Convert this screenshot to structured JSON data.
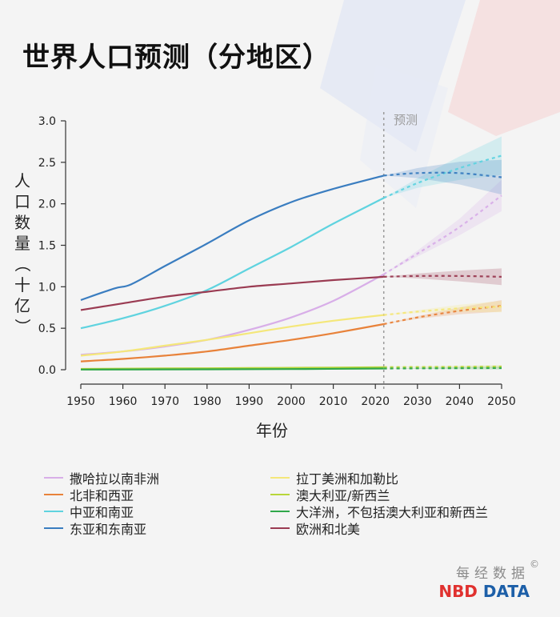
{
  "title": "世界人口预测（分地区）",
  "projection_label": "预测",
  "brand": {
    "cn": "每经数据",
    "en_left": "NBD",
    "en_right": "DATA",
    "copyright": "©"
  },
  "chart_data": {
    "type": "line",
    "title": "世界人口预测（分地区）",
    "xlabel": "年份",
    "ylabel": "人口数量（十亿）",
    "xlim": [
      1950,
      2050
    ],
    "ylim": [
      0,
      3.0
    ],
    "x_ticks": [
      1950,
      1960,
      1970,
      1980,
      1990,
      2000,
      2010,
      2020,
      2030,
      2040,
      2050
    ],
    "y_ticks": [
      "0.0",
      "0.5",
      "1.0",
      "1.5",
      "2.0",
      "2.5",
      "3.0"
    ],
    "projection_start": 2022,
    "series": [
      {
        "name": "撒哈拉以南非洲",
        "color": "#d8aee8",
        "historical": [
          [
            1950,
            0.18
          ],
          [
            1960,
            0.22
          ],
          [
            1970,
            0.28
          ],
          [
            1980,
            0.36
          ],
          [
            1990,
            0.48
          ],
          [
            2000,
            0.63
          ],
          [
            2010,
            0.83
          ],
          [
            2022,
            1.15
          ]
        ],
        "projected": [
          [
            2022,
            1.15
          ],
          [
            2030,
            1.4
          ],
          [
            2040,
            1.72
          ],
          [
            2050,
            2.1
          ]
        ]
      },
      {
        "name": "北非和西亚",
        "color": "#e8823a",
        "historical": [
          [
            1950,
            0.1
          ],
          [
            1960,
            0.13
          ],
          [
            1970,
            0.17
          ],
          [
            1980,
            0.22
          ],
          [
            1990,
            0.29
          ],
          [
            2000,
            0.36
          ],
          [
            2010,
            0.44
          ],
          [
            2022,
            0.55
          ]
        ],
        "projected": [
          [
            2022,
            0.55
          ],
          [
            2030,
            0.63
          ],
          [
            2040,
            0.71
          ],
          [
            2050,
            0.77
          ]
        ]
      },
      {
        "name": "中亚和南亚",
        "color": "#5fd3df",
        "historical": [
          [
            1950,
            0.5
          ],
          [
            1960,
            0.62
          ],
          [
            1970,
            0.77
          ],
          [
            1980,
            0.96
          ],
          [
            1990,
            1.22
          ],
          [
            2000,
            1.48
          ],
          [
            2010,
            1.76
          ],
          [
            2022,
            2.07
          ]
        ],
        "projected": [
          [
            2022,
            2.07
          ],
          [
            2030,
            2.25
          ],
          [
            2040,
            2.43
          ],
          [
            2050,
            2.58
          ]
        ]
      },
      {
        "name": "东亚和东南亚",
        "color": "#3a7dc0",
        "historical": [
          [
            1950,
            0.84
          ],
          [
            1958,
            0.98
          ],
          [
            1962,
            1.03
          ],
          [
            1970,
            1.25
          ],
          [
            1980,
            1.52
          ],
          [
            1990,
            1.8
          ],
          [
            2000,
            2.02
          ],
          [
            2010,
            2.18
          ],
          [
            2022,
            2.34
          ]
        ],
        "projected": [
          [
            2022,
            2.34
          ],
          [
            2030,
            2.37
          ],
          [
            2040,
            2.37
          ],
          [
            2050,
            2.32
          ]
        ]
      },
      {
        "name": "拉丁美洲和加勒比",
        "color": "#f4e77a",
        "historical": [
          [
            1950,
            0.17
          ],
          [
            1960,
            0.22
          ],
          [
            1970,
            0.29
          ],
          [
            1980,
            0.36
          ],
          [
            1990,
            0.44
          ],
          [
            2000,
            0.52
          ],
          [
            2010,
            0.59
          ],
          [
            2022,
            0.66
          ]
        ],
        "projected": [
          [
            2022,
            0.66
          ],
          [
            2030,
            0.7
          ],
          [
            2040,
            0.74
          ],
          [
            2050,
            0.76
          ]
        ]
      },
      {
        "name": "澳大利亚/新西兰",
        "color": "#b8d63a",
        "historical": [
          [
            1950,
            0.01
          ],
          [
            1970,
            0.015
          ],
          [
            1990,
            0.02
          ],
          [
            2010,
            0.026
          ],
          [
            2022,
            0.031
          ]
        ],
        "projected": [
          [
            2022,
            0.031
          ],
          [
            2050,
            0.038
          ]
        ]
      },
      {
        "name": "大洋洲，不包括澳大利亚和新西兰",
        "color": "#2fa84a",
        "historical": [
          [
            1950,
            0.002
          ],
          [
            1980,
            0.005
          ],
          [
            2000,
            0.008
          ],
          [
            2022,
            0.014
          ]
        ],
        "projected": [
          [
            2022,
            0.014
          ],
          [
            2050,
            0.02
          ]
        ]
      },
      {
        "name": "欧洲和北美",
        "color": "#9a3b52",
        "historical": [
          [
            1950,
            0.72
          ],
          [
            1960,
            0.8
          ],
          [
            1970,
            0.88
          ],
          [
            1980,
            0.94
          ],
          [
            1990,
            1.0
          ],
          [
            2000,
            1.04
          ],
          [
            2010,
            1.08
          ],
          [
            2022,
            1.12
          ]
        ],
        "projected": [
          [
            2022,
            1.12
          ],
          [
            2030,
            1.13
          ],
          [
            2040,
            1.13
          ],
          [
            2050,
            1.12
          ]
        ]
      }
    ],
    "legend": {
      "left": [
        "撒哈拉以南非洲",
        "北非和西亚",
        "中亚和南亚",
        "东亚和东南亚"
      ],
      "right": [
        "拉丁美洲和加勒比",
        "澳大利亚/新西兰",
        "大洋洲，不包括澳大利亚和新西兰",
        "欧洲和北美"
      ]
    }
  }
}
